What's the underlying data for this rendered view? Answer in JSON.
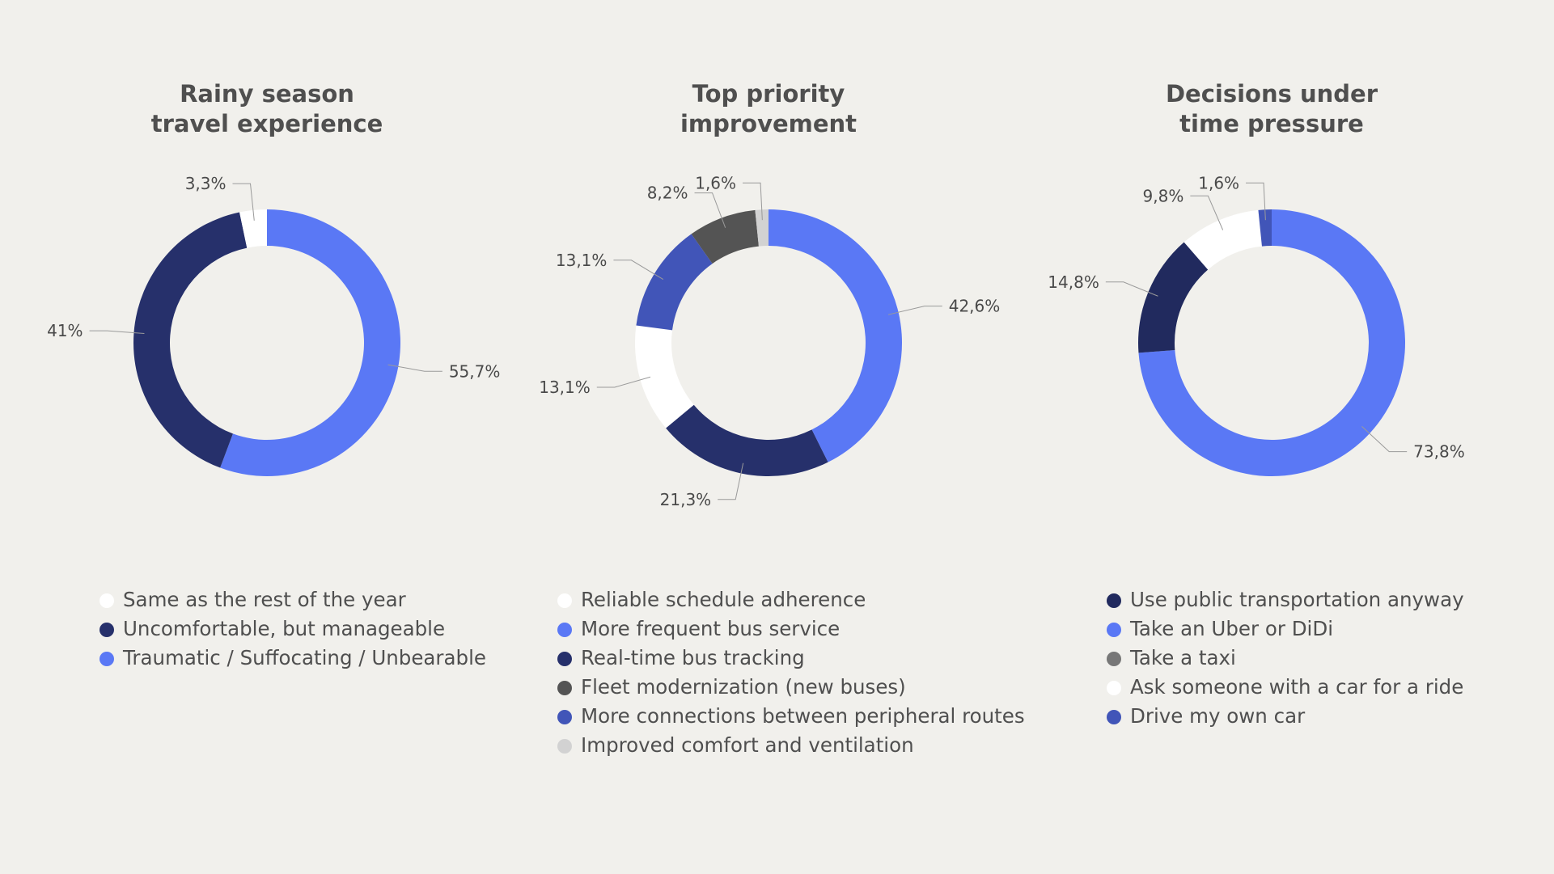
{
  "colors": {
    "background": "#f1f0ec",
    "white": "#ffffff",
    "navy": "#26306b",
    "periwinkle": "#5a78f5",
    "royal": "#4155b8",
    "charcoal": "#545454",
    "light_gray": "#d2d2d2",
    "gray": "#777777"
  },
  "chart_data": [
    {
      "type": "pie",
      "title": "Rainy season\ntravel experience",
      "categories": [
        "Same as the rest of the year",
        "Uncomfortable, but manageable",
        "Traumatic / Suffocating / Unbearable"
      ],
      "values": [
        3.3,
        41,
        55.7
      ],
      "labels": [
        "3,3%",
        "41%",
        "55,7%"
      ],
      "colors": [
        "#ffffff",
        "#26306b",
        "#5a78f5"
      ],
      "ring_order": [
        2,
        1,
        0
      ],
      "legend": [
        {
          "label": "Same as the rest of the year",
          "color": "#ffffff"
        },
        {
          "label": "Uncomfortable, but manageable",
          "color": "#26306b"
        },
        {
          "label": "Traumatic / Suffocating / Unbearable",
          "color": "#5a78f5"
        }
      ]
    },
    {
      "type": "pie",
      "title": "Top priority\nimprovement",
      "categories": [
        "Reliable schedule adherence",
        "More frequent bus service",
        "Real-time bus tracking",
        "Fleet modernization (new buses)",
        "More connections between peripheral routes",
        "Improved comfort and ventilation"
      ],
      "values": [
        13.1,
        42.6,
        21.3,
        8.2,
        13.1,
        1.6
      ],
      "labels": [
        "13,1%",
        "42,6%",
        "21,3%",
        "8,2%",
        "13,1%",
        "1,6%"
      ],
      "colors": [
        "#ffffff",
        "#5a78f5",
        "#26306b",
        "#545454",
        "#4155b8",
        "#d2d2d2"
      ],
      "ring_order": [
        1,
        2,
        0,
        4,
        3,
        5
      ],
      "legend": [
        {
          "label": "Reliable schedule adherence",
          "color": "#ffffff"
        },
        {
          "label": "More frequent bus service",
          "color": "#5a78f5"
        },
        {
          "label": "Real-time bus tracking",
          "color": "#26306b"
        },
        {
          "label": "Fleet modernization (new buses)",
          "color": "#545454"
        },
        {
          "label": "More connections between peripheral routes",
          "color": "#4155b8"
        },
        {
          "label": "Improved comfort and ventilation",
          "color": "#d2d2d2"
        }
      ]
    },
    {
      "type": "pie",
      "title": "Decisions under\ntime pressure",
      "categories": [
        "Use public transportation anyway",
        "Take an Uber or DiDi",
        "Take a taxi",
        "Ask someone with a car for a ride",
        "Drive my own car"
      ],
      "values": [
        14.8,
        73.8,
        0,
        9.8,
        1.6
      ],
      "labels": [
        "14,8%",
        "73,8%",
        "",
        "9,8%",
        "1,6%"
      ],
      "colors": [
        "#212a5e",
        "#5a78f5",
        "#777777",
        "#ffffff",
        "#4155b8"
      ],
      "ring_order": [
        1,
        0,
        3,
        4
      ],
      "legend": [
        {
          "label": "Use public transportation anyway",
          "color": "#212a5e"
        },
        {
          "label": "Take an Uber or DiDi",
          "color": "#5a78f5"
        },
        {
          "label": "Take a taxi",
          "color": "#777777"
        },
        {
          "label": "Ask someone with a car for a ride",
          "color": "#ffffff"
        },
        {
          "label": "Drive my own car",
          "color": "#4155b8"
        }
      ]
    }
  ]
}
